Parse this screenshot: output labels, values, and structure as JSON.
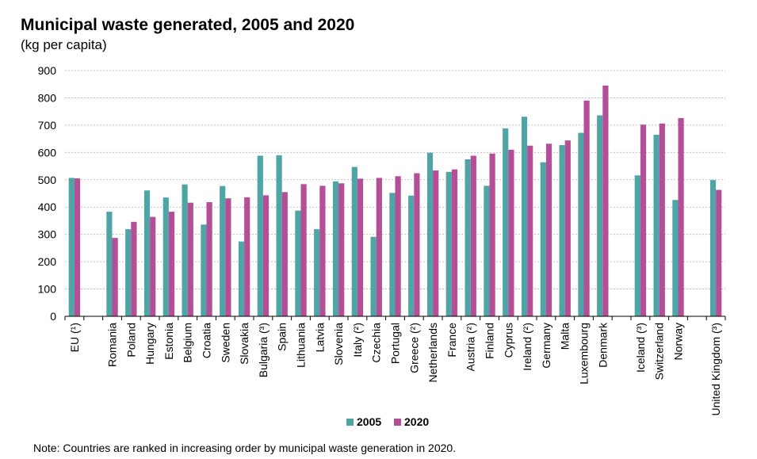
{
  "chart_data": {
    "type": "bar",
    "title": "Municipal waste generated, 2005 and 2020",
    "subtitle": "(kg per capita)",
    "xlabel": "",
    "ylabel": "",
    "ylim": [
      0,
      900
    ],
    "yticks": [
      0,
      100,
      200,
      300,
      400,
      500,
      600,
      700,
      800,
      900
    ],
    "grid": true,
    "legend_position": "bottom-center",
    "colors": {
      "2005": "#4fa5a6",
      "2020": "#b34e97",
      "grid": "#b0b0b0"
    },
    "categories": [
      "EU (¹)",
      "",
      "Romania",
      "Poland",
      "Hungary",
      "Estonia",
      "Belgium",
      "Croatia",
      "Sweden",
      "Slovakia",
      "Bulgaria  (³)",
      "Spain",
      "Lithuania",
      "Latvia",
      "Slovenia",
      "Italy  (²)",
      "Czechia",
      "Portugal",
      "Greece  (²)",
      "Netherlands",
      "France",
      "Austria  (²)",
      "Finland",
      "Cyprus",
      "Ireland  (²)",
      "Germany",
      "Malta",
      "Luxembourg",
      "Denmark",
      "",
      "Iceland  (³)",
      "Switzerland",
      "Norway",
      "",
      "United Kingdom (³)"
    ],
    "series": [
      {
        "name": "2005",
        "values": [
          507,
          null,
          383,
          319,
          461,
          435,
          483,
          336,
          477,
          274,
          588,
          590,
          387,
          319,
          494,
          547,
          291,
          452,
          442,
          599,
          529,
          575,
          478,
          688,
          731,
          564,
          627,
          672,
          736,
          null,
          516,
          665,
          426,
          null,
          499
        ]
      },
      {
        "name": "2020",
        "values": [
          505,
          null,
          287,
          346,
          364,
          383,
          416,
          418,
          432,
          436,
          443,
          455,
          484,
          478,
          487,
          504,
          507,
          513,
          524,
          534,
          538,
          588,
          596,
          610,
          625,
          632,
          644,
          790,
          845,
          null,
          702,
          706,
          726,
          null,
          463
        ]
      }
    ]
  },
  "note": "Note: Countries are ranked in increasing order by municipal waste generation in 2020."
}
